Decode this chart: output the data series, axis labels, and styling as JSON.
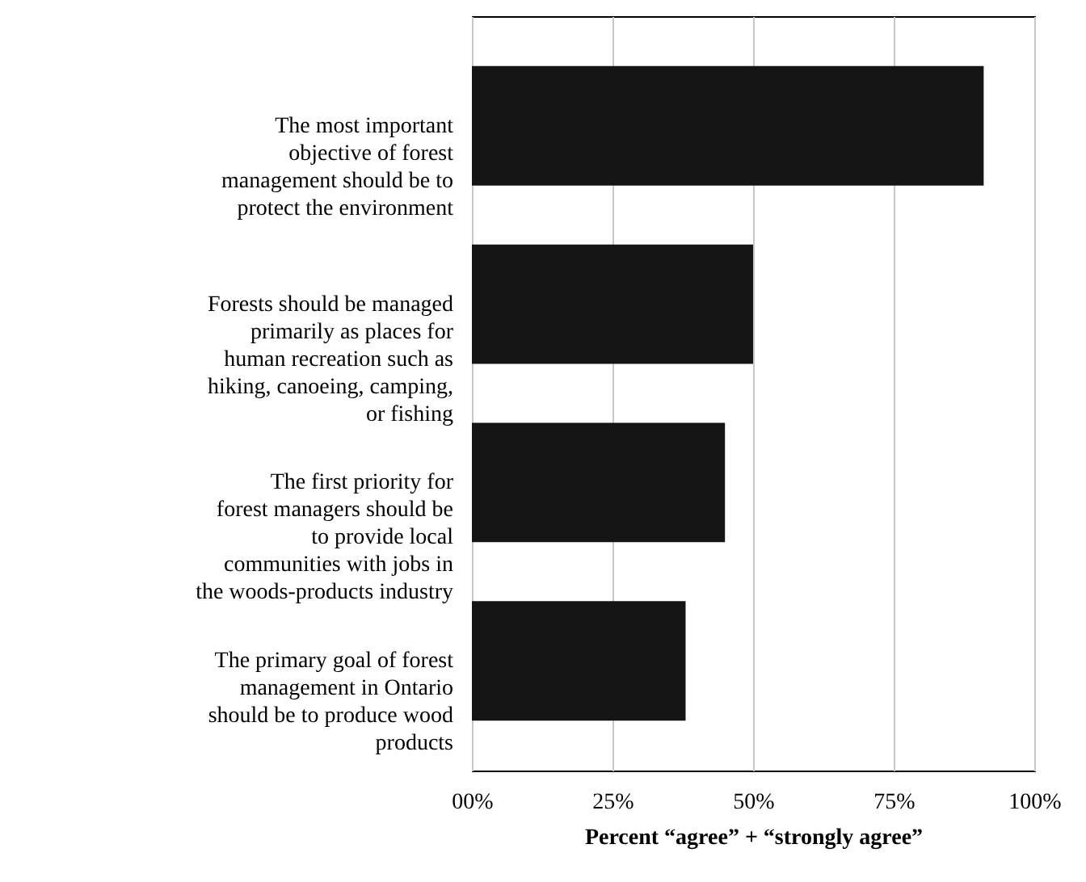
{
  "chart_data": {
    "type": "bar",
    "orientation": "horizontal",
    "categories": [
      "The most important objective of forest management should be to protect the environment",
      "Forests should be managed primarily as places for human recreation such as hiking, canoeing, camping, or fishing",
      "The first priority for forest managers should be to provide local communities with jobs in the woods-products industry",
      "The primary goal of forest management in Ontario should be to produce wood products"
    ],
    "values": [
      91,
      50,
      45,
      38
    ],
    "color": "#141414",
    "xlabel": "Percent “agree” + “strongly agree”",
    "xlim": [
      0,
      100
    ],
    "xticks": [
      {
        "value": 0,
        "label": "00%"
      },
      {
        "value": 25,
        "label": "25%"
      },
      {
        "value": 50,
        "label": "50%"
      },
      {
        "value": 75,
        "label": "75%"
      },
      {
        "value": 100,
        "label": "100%"
      }
    ],
    "grid": "x"
  }
}
